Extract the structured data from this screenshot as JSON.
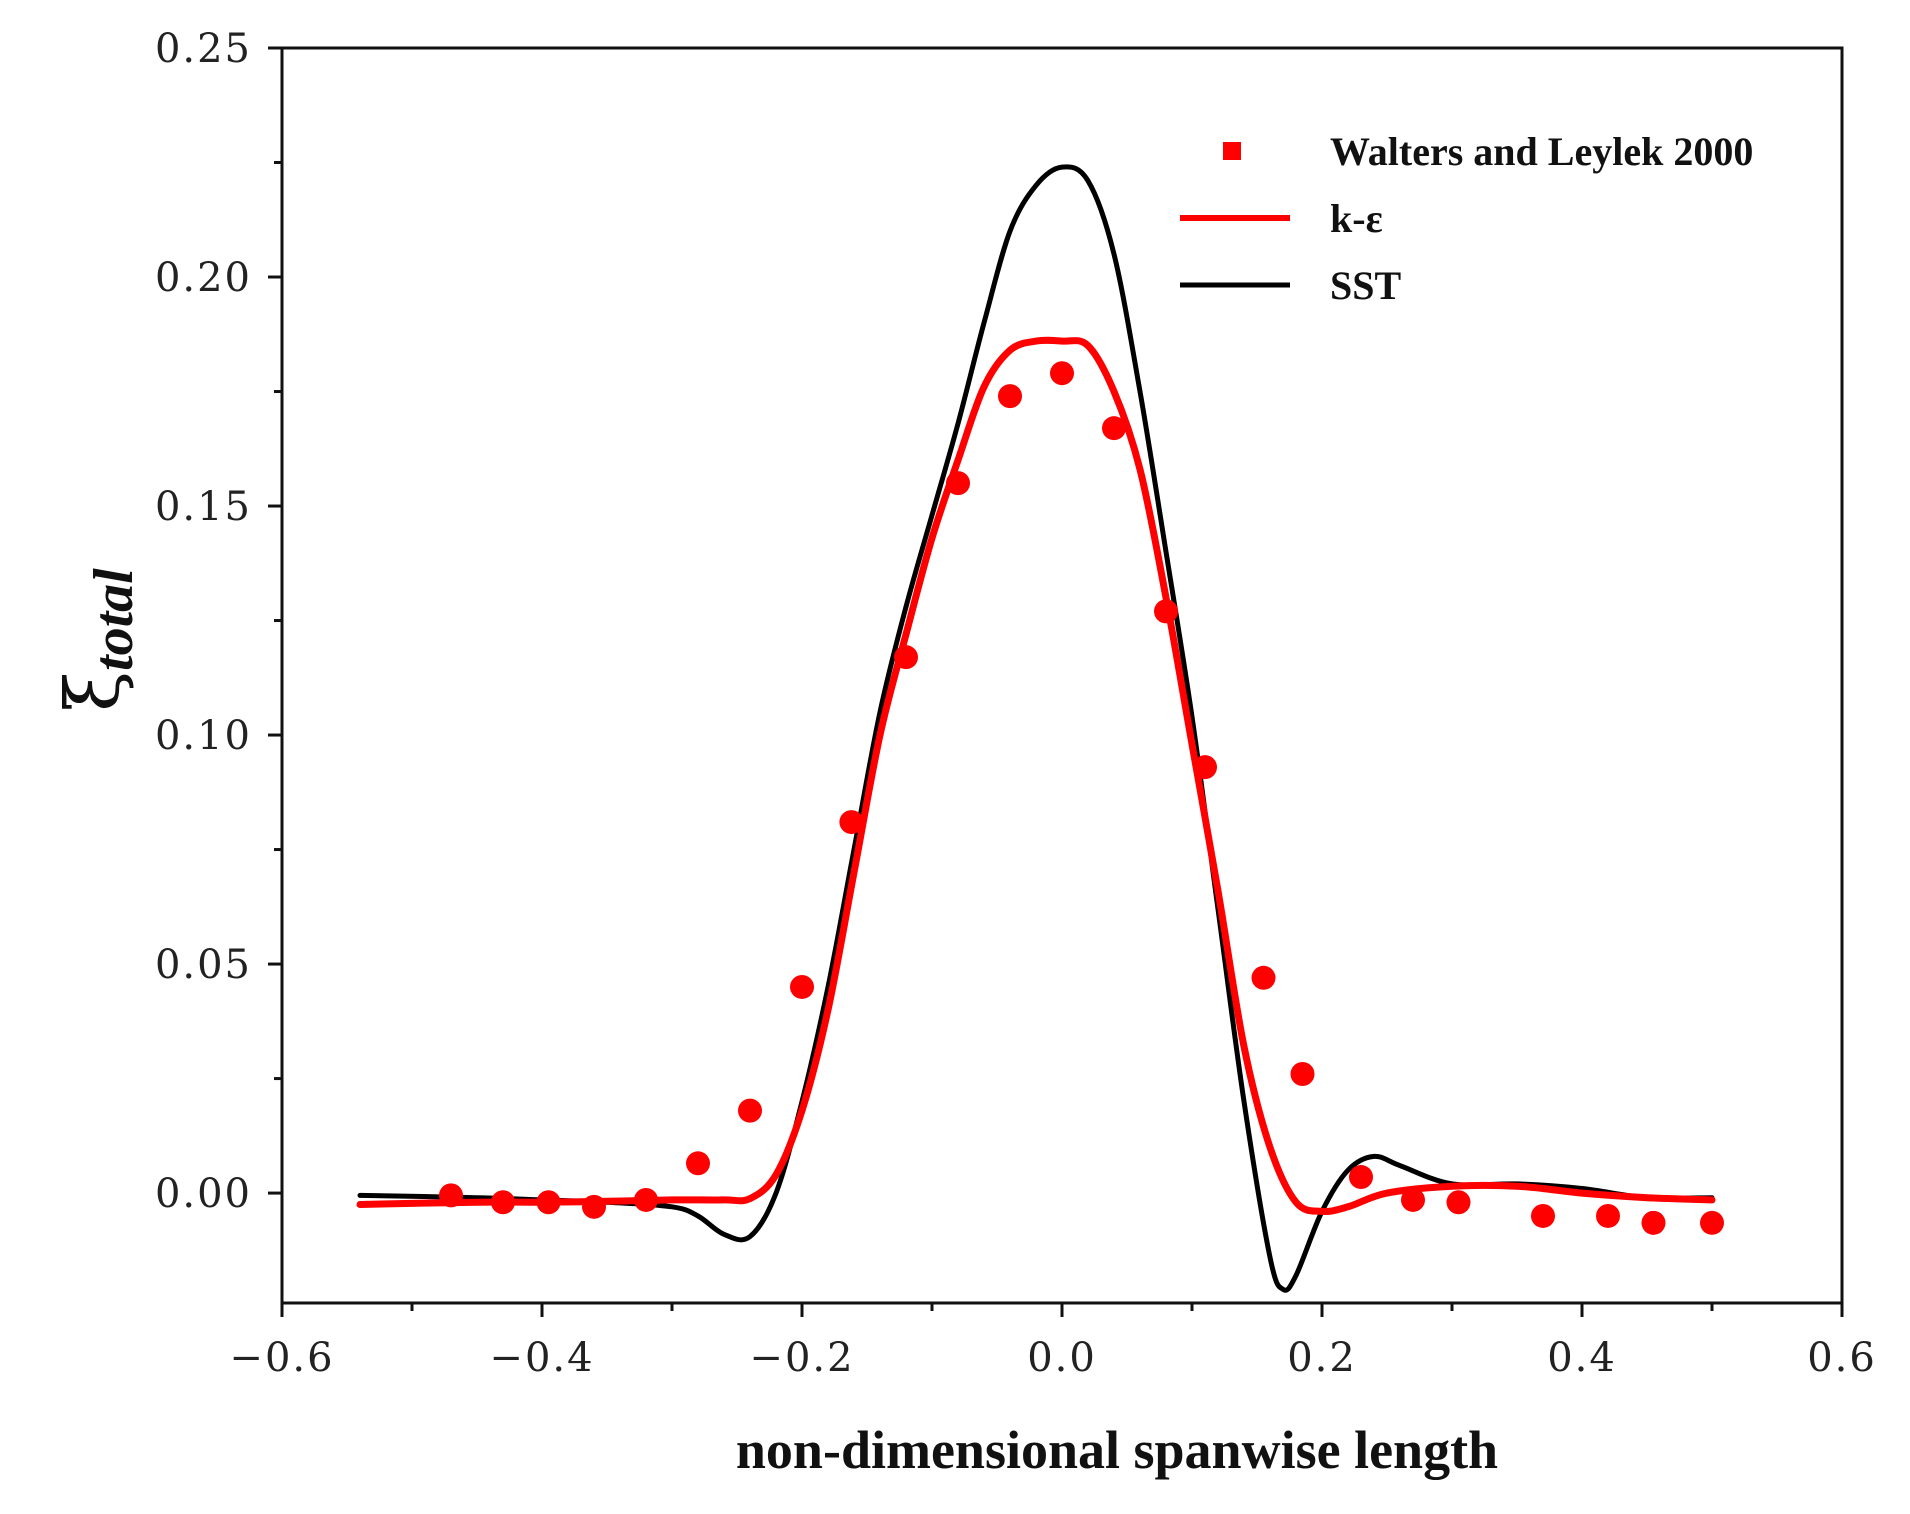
{
  "chart_data": {
    "type": "line",
    "xlabel": "non-dimensional spanwise length",
    "ylabel_symbol": "ξ",
    "ylabel_subscript": "total",
    "xlim": [
      -0.6,
      0.6
    ],
    "ylim": [
      -0.024,
      0.25
    ],
    "x_ticks": [
      -0.6,
      -0.4,
      -0.2,
      0.0,
      0.2,
      0.4,
      0.6
    ],
    "x_tick_labels": [
      "−0.6",
      "−0.4",
      "−0.2",
      "0.0",
      "0.2",
      "0.4",
      "0.6"
    ],
    "y_ticks": [
      0.0,
      0.05,
      0.1,
      0.15,
      0.2,
      0.25
    ],
    "y_tick_labels": [
      "0.00",
      "0.05",
      "0.10",
      "0.15",
      "0.20",
      "0.25"
    ],
    "grid": false,
    "legend_position": "top-right",
    "series": [
      {
        "name": "Walters and Leylek 2000",
        "kind": "scatter",
        "color": "#ff0000",
        "x": [
          -0.47,
          -0.43,
          -0.395,
          -0.36,
          -0.32,
          -0.28,
          -0.24,
          -0.2,
          -0.162,
          -0.12,
          -0.08,
          -0.04,
          0.0,
          0.04,
          0.08,
          0.11,
          0.155,
          0.185,
          0.23,
          0.27,
          0.305,
          0.37,
          0.42,
          0.455,
          0.5
        ],
        "y": [
          -0.0005,
          -0.002,
          -0.002,
          -0.003,
          -0.0015,
          0.0065,
          0.018,
          0.045,
          0.081,
          0.117,
          0.155,
          0.174,
          0.179,
          0.167,
          0.127,
          0.093,
          0.047,
          0.026,
          0.0035,
          -0.0015,
          -0.002,
          -0.005,
          -0.005,
          -0.0065,
          -0.0065
        ]
      },
      {
        "name": "k-ε",
        "kind": "line",
        "color": "#ff0000",
        "x": [
          -0.54,
          -0.45,
          -0.4,
          -0.35,
          -0.3,
          -0.26,
          -0.24,
          -0.22,
          -0.2,
          -0.18,
          -0.16,
          -0.14,
          -0.12,
          -0.1,
          -0.08,
          -0.06,
          -0.04,
          -0.02,
          0.0,
          0.02,
          0.04,
          0.06,
          0.08,
          0.1,
          0.12,
          0.14,
          0.16,
          0.18,
          0.2,
          0.22,
          0.25,
          0.3,
          0.35,
          0.4,
          0.45,
          0.5
        ],
        "y": [
          -0.0025,
          -0.002,
          -0.002,
          -0.0018,
          -0.0015,
          -0.0015,
          -0.0012,
          0.004,
          0.018,
          0.04,
          0.07,
          0.1,
          0.122,
          0.143,
          0.16,
          0.176,
          0.184,
          0.186,
          0.186,
          0.185,
          0.175,
          0.158,
          0.13,
          0.098,
          0.066,
          0.032,
          0.01,
          -0.002,
          -0.004,
          -0.003,
          0.0,
          0.0015,
          0.0015,
          0.0,
          -0.001,
          -0.0015
        ]
      },
      {
        "name": "SST",
        "kind": "line",
        "color": "#000000",
        "x": [
          -0.54,
          -0.45,
          -0.4,
          -0.35,
          -0.3,
          -0.28,
          -0.26,
          -0.24,
          -0.22,
          -0.2,
          -0.18,
          -0.16,
          -0.14,
          -0.12,
          -0.1,
          -0.08,
          -0.06,
          -0.04,
          -0.02,
          0.0,
          0.02,
          0.04,
          0.06,
          0.08,
          0.1,
          0.12,
          0.14,
          0.16,
          0.17,
          0.18,
          0.2,
          0.22,
          0.24,
          0.26,
          0.3,
          0.35,
          0.4,
          0.45,
          0.5
        ],
        "y": [
          -0.0005,
          -0.001,
          -0.0015,
          -0.002,
          -0.003,
          -0.005,
          -0.009,
          -0.0095,
          0.0,
          0.02,
          0.045,
          0.075,
          0.105,
          0.128,
          0.148,
          0.168,
          0.19,
          0.21,
          0.22,
          0.224,
          0.221,
          0.205,
          0.175,
          0.14,
          0.104,
          0.062,
          0.02,
          -0.014,
          -0.021,
          -0.018,
          -0.004,
          0.005,
          0.008,
          0.006,
          0.002,
          0.002,
          0.001,
          -0.001,
          -0.001
        ]
      }
    ]
  }
}
